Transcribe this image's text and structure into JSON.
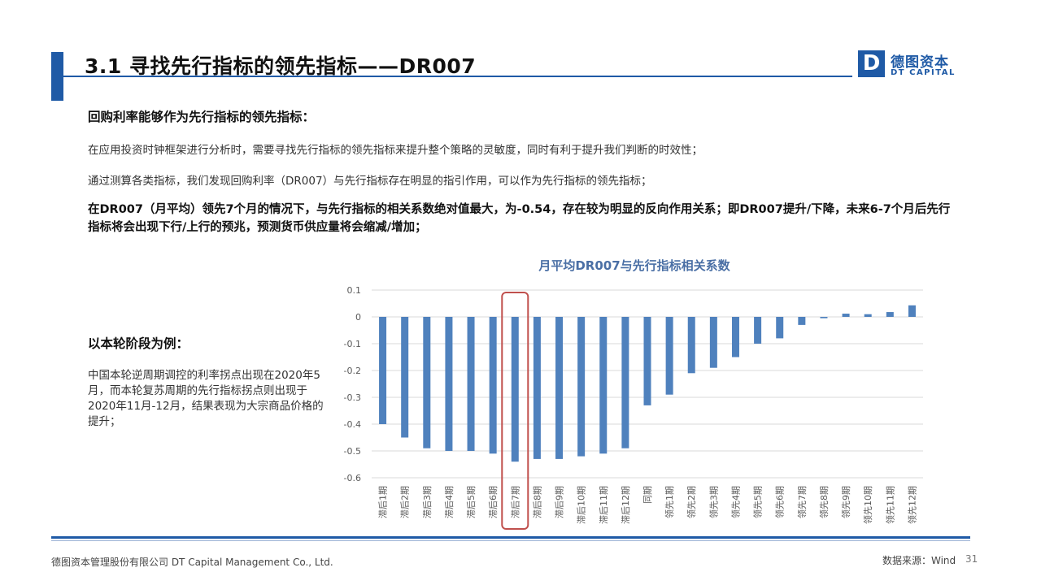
{
  "header": {
    "title": "3.1 寻找先行指标的领先指标——DR007",
    "logo_mark": "D",
    "logo_cn": "德图资本",
    "logo_en": "DT CAPITAL",
    "accent_color": "#1f5aa6"
  },
  "content": {
    "intro_heading": "回购利率能够作为先行指标的领先指标：",
    "para1": "在应用投资时钟框架进行分析时，需要寻找先行指标的领先指标来提升整个策略的灵敏度，同时有利于提升我们判断的时效性；",
    "para2": "通过测算各类指标，我们发现回购利率（DR007）与先行指标存在明显的指引作用，可以作为先行指标的领先指标；",
    "para3": "在DR007（月平均）领先7个月的情况下，与先行指标的相关系数绝对值最大，为-0.54，存在较为明显的反向作用关系；即DR007提升/下降，未来6-7个月后先行指标将会出现下行/上行的预兆，预测货币供应量将会缩减/增加；",
    "case_heading": "以本轮阶段为例：",
    "case_body": "中国本轮逆周期调控的利率拐点出现在2020年5月，而本轮复苏周期的先行指标拐点则出现于2020年11月-12月，结果表现为大宗商品价格的提升；"
  },
  "chart_data": {
    "type": "bar",
    "title": "月平均DR007与先行指标相关系数",
    "categories": [
      "滞后1期",
      "滞后2期",
      "滞后3期",
      "滞后4期",
      "滞后5期",
      "滞后6期",
      "滞后7期",
      "滞后8期",
      "滞后9期",
      "滞后10期",
      "滞后11期",
      "滞后12期",
      "同期",
      "领先1期",
      "领先2期",
      "领先3期",
      "领先4期",
      "领先5期",
      "领先6期",
      "领先7期",
      "领先8期",
      "领先9期",
      "领先10期",
      "领先11期",
      "领先12期"
    ],
    "values": [
      -0.4,
      -0.45,
      -0.49,
      -0.5,
      -0.5,
      -0.51,
      -0.54,
      -0.53,
      -0.53,
      -0.52,
      -0.51,
      -0.49,
      -0.33,
      -0.29,
      -0.21,
      -0.19,
      -0.15,
      -0.1,
      -0.08,
      -0.03,
      -0.005,
      0.012,
      0.01,
      0.018,
      0.043
    ],
    "ylim": [
      -0.6,
      0.1
    ],
    "yticks": [
      "0.1",
      "0",
      "-0.1",
      "-0.2",
      "-0.3",
      "-0.4",
      "-0.5",
      "-0.6"
    ],
    "ytick_values": [
      0.1,
      0,
      -0.1,
      -0.2,
      -0.3,
      -0.4,
      -0.5,
      -0.6
    ],
    "grid": true,
    "bar_color": "#4f81bd",
    "highlight_index": 6,
    "highlight_color": "#c0504d"
  },
  "footer": {
    "company": "德图资本管理股份有限公司  DT Capital Management  Co., Ltd.",
    "source": "数据来源：Wind",
    "page_number": "31"
  }
}
